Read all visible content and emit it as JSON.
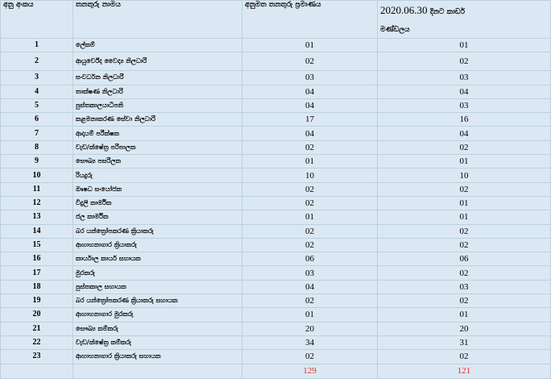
{
  "headers": {
    "num": "අනු අංකය",
    "name": "තනතුරු නාමය",
    "approved": "අනුමත තනතුරු ප්‍රමාණය",
    "date_line1": "2020.06.30",
    "date_line1_suffix": "දිනට කාඩර්",
    "date_line2": "මණ්ඩලය"
  },
  "rows": [
    {
      "num": "1",
      "name": "ලේකම්",
      "approved": "01",
      "cadre": "01"
    },
    {
      "num": "2",
      "name": "ආයුර්වේද වෛද්‍ය නිලධාරි",
      "approved": "02",
      "cadre": "02"
    },
    {
      "num": "3",
      "name": "සංවර්ධන නිලධාරි",
      "approved": "03",
      "cadre": "03"
    },
    {
      "num": "4",
      "name": "තාක්ෂණ නිලධාරි",
      "approved": "04",
      "cadre": "04"
    },
    {
      "num": "5",
      "name": "පුස්තකාලයාධිපති",
      "approved": "04",
      "cadre": "03"
    },
    {
      "num": "6",
      "name": "කළමනාකරණ සේවා නිලධාරි",
      "approved": "17",
      "cadre": "16"
    },
    {
      "num": "7",
      "name": "ආදායම් පරීක්ෂක",
      "approved": "04",
      "cadre": "04"
    },
    {
      "num": "8",
      "name": "වැඩ/ක්ෂේත්‍ර පරිපාලක",
      "approved": "02",
      "cadre": "02"
    },
    {
      "num": "9",
      "name": "සෞඛ්‍ය පසරිලක",
      "approved": "01",
      "cadre": "01"
    },
    {
      "num": "10",
      "name": "රියදුරු",
      "approved": "10",
      "cadre": "10"
    },
    {
      "num": "11",
      "name": "ඖෂධ සංයෝජක",
      "approved": "02",
      "cadre": "02"
    },
    {
      "num": "12",
      "name": "විදුලි කාර්මික",
      "approved": "02",
      "cadre": "01"
    },
    {
      "num": "13",
      "name": "ජල කාර්මික",
      "approved": "01",
      "cadre": "01"
    },
    {
      "num": "14",
      "name": "බර යන්ත්‍රෝපකරණ ක්‍රියාකරු",
      "approved": "02",
      "cadre": "02"
    },
    {
      "num": "15",
      "name": "ආහාහනාගාර ක්‍රියාකරු",
      "approved": "02",
      "cadre": "02"
    },
    {
      "num": "16",
      "name": "කාර්යාල කාර්ය සහායක",
      "approved": "06",
      "cadre": "06"
    },
    {
      "num": "17",
      "name": "මුරකරු",
      "approved": "03",
      "cadre": "02"
    },
    {
      "num": "18",
      "name": "පුස්තකාල සහායක",
      "approved": "04",
      "cadre": "03"
    },
    {
      "num": "19",
      "name": "බර යන්ත්‍රෝපකරණ ක්‍රියාකරු සහායක",
      "approved": "02",
      "cadre": "02"
    },
    {
      "num": "20",
      "name": "ආහාහනාගාර මුරකරු",
      "approved": "01",
      "cadre": "01"
    },
    {
      "num": "21",
      "name": "සෞඛ්‍ය කම්කරු",
      "approved": "20",
      "cadre": "20"
    },
    {
      "num": "22",
      "name": "වැඩ/ක්ෂේත්‍ර කම්කරු",
      "approved": "34",
      "cadre": "31"
    },
    {
      "num": "23",
      "name": "ආහාහනාගාර ක්‍රියාකරු සහායක",
      "approved": "02",
      "cadre": "02"
    }
  ],
  "totals": {
    "approved": "129",
    "cadre": "121"
  },
  "colors": {
    "cell_bg": "#dbe8f3",
    "border": "#bcd0df",
    "total_text": "#e0302a"
  }
}
